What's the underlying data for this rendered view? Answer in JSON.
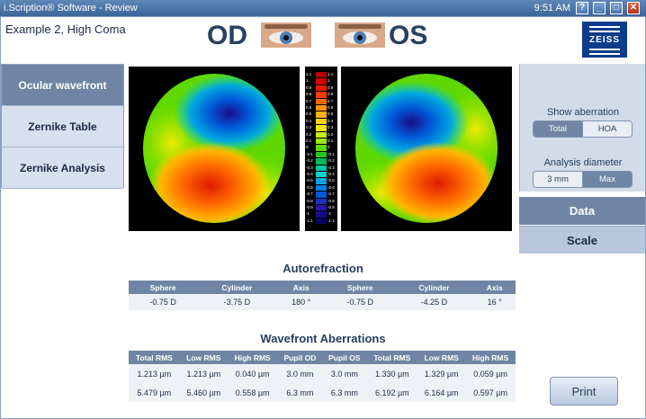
{
  "window": {
    "title": "i.Scription® Software - Review",
    "clock": "9:51 AM",
    "buttons": [
      "?",
      "_",
      "□",
      "✕"
    ]
  },
  "header": {
    "patient": "Example 2, High Coma",
    "od": "OD",
    "os": "OS",
    "logo": "ZEISS"
  },
  "nav": {
    "items": [
      {
        "label": "Ocular wavefront",
        "active": true
      },
      {
        "label": "Zernike Table",
        "active": false
      },
      {
        "label": "Zernike Analysis",
        "active": false
      }
    ]
  },
  "scale": {
    "labels": [
      "1.1",
      "1",
      "0.9",
      "0.8",
      "0.7",
      "0.6",
      "0.5",
      "0.4",
      "0.3",
      "0.2",
      "0.1",
      "0",
      "-0.1",
      "-0.2",
      "-0.3",
      "-0.4",
      "-0.5",
      "-0.6",
      "-0.7",
      "-0.8",
      "-0.9",
      "-1",
      "-1.1"
    ],
    "colors": [
      "#b00000",
      "#d10000",
      "#e81a00",
      "#ff3b00",
      "#ff6a00",
      "#ff9400",
      "#ffb600",
      "#ffd400",
      "#f0ea00",
      "#c8f000",
      "#9ae800",
      "#5fd800",
      "#27c81e",
      "#00b85a",
      "#00c8a0",
      "#00d4d4",
      "#00a8e0",
      "#0080e0",
      "#0058d8",
      "#2030c0",
      "#2818a8",
      "#1a0c8a",
      "#0a0466"
    ]
  },
  "right": {
    "show_aberration_label": "Show aberration",
    "show_aberration_options": [
      "Total",
      "HOA"
    ],
    "analysis_diameter_label": "Analysis diameter",
    "analysis_diameter_options": [
      "3 mm",
      "Max"
    ],
    "data_button": "Data",
    "scale_button": "Scale"
  },
  "autorefraction": {
    "title": "Autorefraction",
    "headers": [
      "Sphere",
      "Cylinder",
      "Axis",
      "",
      "Sphere",
      "Cylinder",
      "Axis"
    ],
    "row": [
      "-0.75 D",
      "-3.75 D",
      "180 °",
      "",
      "-0.75 D",
      "-4.25 D",
      "16 °"
    ]
  },
  "wavefront": {
    "title": "Wavefront Aberrations",
    "headers": [
      "Total RMS",
      "Low RMS",
      "High RMS",
      "Pupil OD",
      "Pupil OS",
      "Total RMS",
      "Low RMS",
      "High RMS"
    ],
    "rows": [
      [
        "1.213 µm",
        "1.213 µm",
        "0.040 µm",
        "3.0 mm",
        "3.0 mm",
        "1.330 µm",
        "1.329 µm",
        "0.059 µm"
      ],
      [
        "5.479 µm",
        "5.460 µm",
        "0.558 µm",
        "6.3 mm",
        "6.3 mm",
        "6.192 µm",
        "6.164 µm",
        "0.597 µm"
      ]
    ]
  },
  "print_label": "Print"
}
